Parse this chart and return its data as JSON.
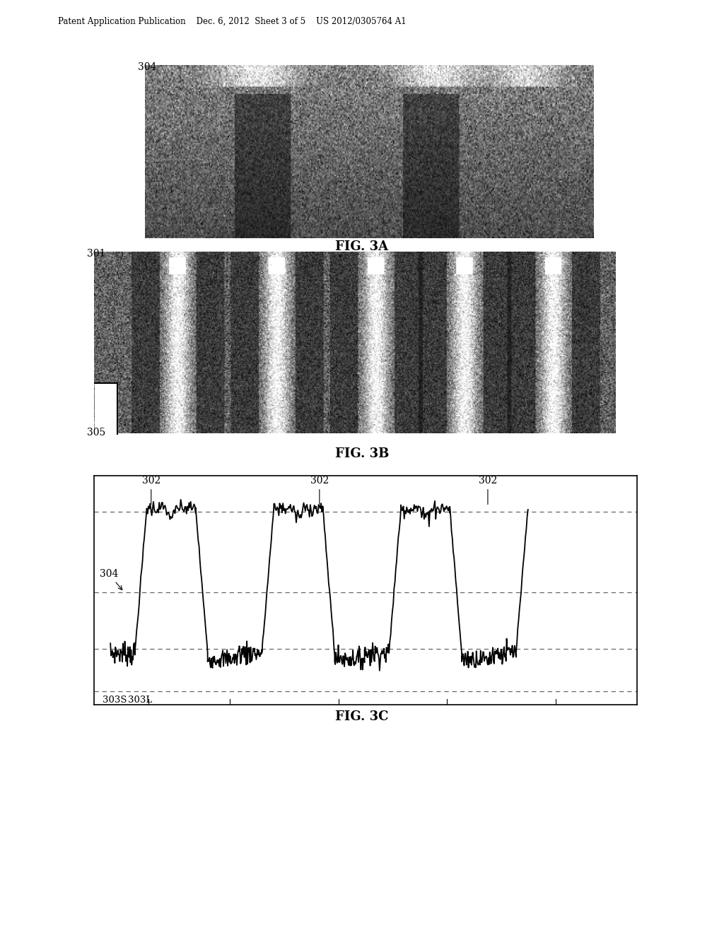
{
  "bg_color": "#ffffff",
  "header_text": "Patent Application Publication    Dec. 6, 2012  Sheet 3 of 5    US 2012/0305764 A1",
  "fig3a_label": "FIG. 3A",
  "fig3b_label": "FIG. 3B",
  "fig3c_label": "FIG. 3C",
  "label_304_3a": "304",
  "label_301": "301",
  "label_305": "305",
  "label_302": "302",
  "label_304_3c": "304",
  "label_303S": "303S",
  "label_303L": "303L",
  "dashed_line_color": "#888888",
  "waveform_color": "#000000",
  "border_color": "#000000"
}
